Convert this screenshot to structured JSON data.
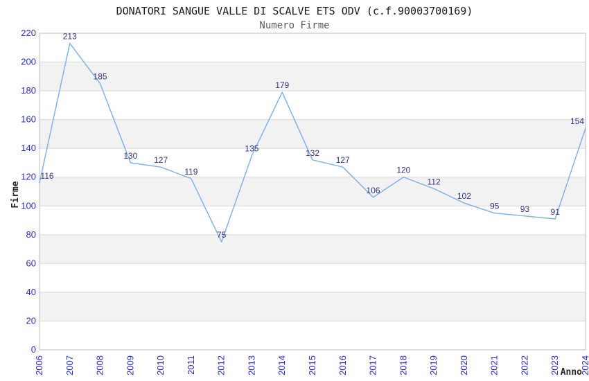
{
  "header": {
    "title": "DONATORI SANGUE VALLE DI SCALVE ETS ODV (c.f.90003700169)",
    "subtitle": "Numero Firme"
  },
  "chart_data": {
    "type": "line",
    "title": "DONATORI SANGUE VALLE DI SCALVE ETS ODV (c.f.90003700169)",
    "subtitle": "Numero Firme",
    "xlabel": "Anno",
    "ylabel": "Firme",
    "categories": [
      "2006",
      "2007",
      "2008",
      "2009",
      "2010",
      "2011",
      "2012",
      "2013",
      "2014",
      "2015",
      "2016",
      "2017",
      "2018",
      "2019",
      "2020",
      "2021",
      "2022",
      "2023",
      "2024"
    ],
    "values": [
      116,
      213,
      185,
      130,
      127,
      119,
      75,
      135,
      179,
      132,
      127,
      106,
      120,
      112,
      102,
      95,
      93,
      91,
      154
    ],
    "ylim": [
      0,
      220
    ],
    "ytick_step": 20,
    "ytick_labels": [
      "0",
      "20",
      "40",
      "60",
      "80",
      "100",
      "120",
      "140",
      "160",
      "180",
      "200",
      "220"
    ],
    "grid": true,
    "legend": "none",
    "band_fill": "alternating horizontal bands, gray on 20-40, 60-80, 100-120, 140-160, 180-200",
    "colors": {
      "line": "#7fb2e8",
      "data_label": "#333380",
      "tick_label": "#2929cc",
      "axis_title": "#262626",
      "grid_line": "#d8d8d8",
      "band_gray": "#f2f2f2",
      "plot_border": "#bfbfbf",
      "title_text": "#1a1a1a",
      "subtitle_text": "#5a5a5a",
      "background": "#ffffff"
    }
  }
}
